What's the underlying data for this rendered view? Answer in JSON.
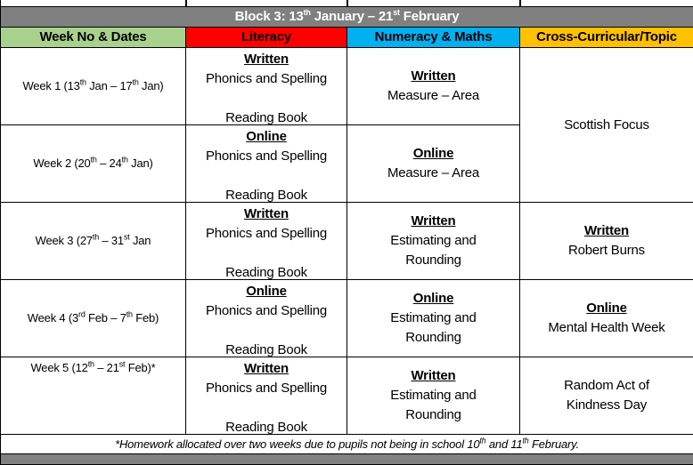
{
  "block_title": {
    "pre": "Block 3: 13",
    "s1": "th",
    "mid": " January – 21",
    "s2": "st",
    "post": " February"
  },
  "headers": [
    {
      "label": "Week No & Dates",
      "color": "#a9d18e"
    },
    {
      "label": "Literacy",
      "color": "#ff0000"
    },
    {
      "label": "Numeracy & Maths",
      "color": "#00b0f0"
    },
    {
      "label": "Cross-Curricular/Topic",
      "color": "#ffc000"
    }
  ],
  "rows": [
    {
      "week": [
        [
          "Week 1 (13",
          ""
        ],
        [
          "th",
          "sup"
        ],
        [
          " Jan – 17",
          ""
        ],
        [
          "th",
          "sup"
        ],
        [
          " Jan)",
          ""
        ]
      ],
      "literacy": {
        "type": "Written",
        "task": "Phonics and Spelling",
        "extra": "Reading Book"
      },
      "maths": {
        "type": "Written",
        "task": "Measure – Area"
      }
    },
    {
      "week": [
        [
          "Week 2 (20",
          ""
        ],
        [
          "th",
          "sup"
        ],
        [
          " – 24",
          ""
        ],
        [
          "th",
          "sup"
        ],
        [
          " Jan)",
          ""
        ]
      ],
      "literacy": {
        "type": "Online",
        "task": "Phonics and Spelling",
        "extra": "Reading Book"
      },
      "maths": {
        "type": "Online",
        "task": "Measure – Area"
      }
    },
    {
      "week": [
        [
          "Week 3 (27",
          ""
        ],
        [
          "th",
          "sup"
        ],
        [
          " – 31",
          ""
        ],
        [
          "st",
          "sup"
        ],
        [
          " Jan",
          ""
        ]
      ],
      "literacy": {
        "type": "Written",
        "task": "Phonics and Spelling",
        "extra": "Reading Book"
      },
      "maths": {
        "type": "Written",
        "task": "Estimating and Rounding"
      },
      "topic": {
        "type": "Written",
        "task": "Robert Burns"
      }
    },
    {
      "week": [
        [
          "Week 4 (3",
          ""
        ],
        [
          "rd",
          "sup"
        ],
        [
          " Feb – 7",
          ""
        ],
        [
          "th",
          "sup"
        ],
        [
          " Feb)",
          ""
        ]
      ],
      "literacy": {
        "type": "Online",
        "task": "Phonics and Spelling",
        "extra": "Reading Book"
      },
      "maths": {
        "type": "Online",
        "task": "Estimating and Rounding"
      },
      "topic": {
        "type": "Online",
        "task": "Mental Health Week"
      }
    },
    {
      "week": [
        [
          "Week 5 (12",
          ""
        ],
        [
          "th",
          "sup"
        ],
        [
          " – 21",
          ""
        ],
        [
          "st",
          "sup"
        ],
        [
          " Feb)*",
          ""
        ]
      ],
      "week_top": true,
      "literacy": {
        "type": "Written",
        "task": "Phonics and Spelling",
        "extra": "Reading Book"
      },
      "maths": {
        "type": "Written",
        "task": "Estimating and Rounding"
      },
      "topic": {
        "type": "",
        "task": "Random Act of Kindness Day"
      }
    }
  ],
  "merged_topic": "Scottish Focus",
  "footnote": [
    [
      "*Homework allocated over two weeks due to pupils not being in school 10",
      ""
    ],
    [
      "th",
      "sup"
    ],
    [
      " and 11",
      ""
    ],
    [
      "th",
      "sup"
    ],
    [
      " February.",
      ""
    ]
  ],
  "colors": {
    "block_bg": "#808080"
  }
}
